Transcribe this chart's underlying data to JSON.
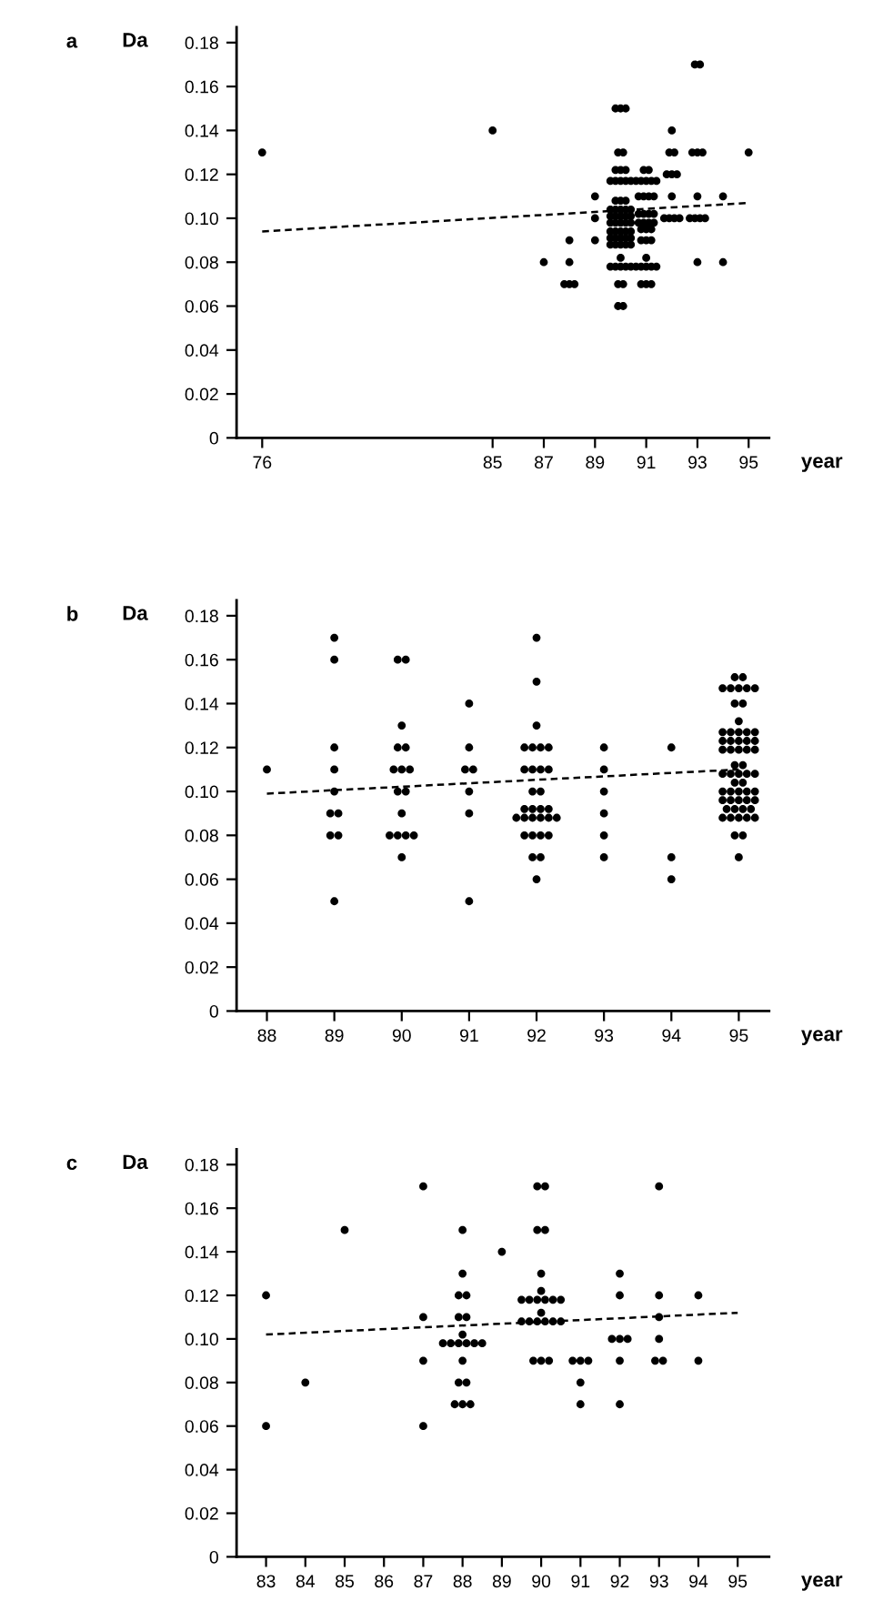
{
  "chart_data": [
    {
      "type": "scatter",
      "title": "a",
      "ylabel": "Da",
      "xlabel": "year",
      "xlim": [
        75,
        95.8
      ],
      "xticks": [
        76,
        85,
        87,
        89,
        91,
        93,
        95
      ],
      "ylim": [
        0,
        0.187
      ],
      "yticks": [
        0,
        {
          "value": 0.02,
          "label": "0.02"
        },
        {
          "value": 0.04,
          "label": "0.04"
        },
        {
          "value": 0.06,
          "label": "0.06"
        },
        {
          "value": 0.08,
          "label": "0.08"
        },
        {
          "value": 0.1,
          "label": "0.10"
        },
        {
          "value": 0.12,
          "label": "0.12"
        },
        {
          "value": 0.14,
          "label": "0.14"
        },
        {
          "value": 0.16,
          "label": "0.16"
        },
        {
          "value": 0.18,
          "label": "0.18"
        }
      ],
      "series": [
        {
          "type": "scatter",
          "color": "#000000",
          "marker": "circle",
          "x": [
            76,
            85,
            87,
            88,
            88,
            87.8,
            88,
            88.2,
            89,
            89,
            89,
            89.8,
            90,
            90.2,
            89.9,
            90.1,
            89.8,
            90,
            90.2,
            89.6,
            89.8,
            90,
            90.2,
            90.4,
            89.8,
            90,
            90.2,
            89.6,
            89.8,
            90,
            90.2,
            90.4,
            89.6,
            89.8,
            90,
            90.2,
            90.4,
            89.6,
            89.8,
            90,
            90.2,
            90.4,
            89.6,
            89.8,
            90,
            90.2,
            90.4,
            89.6,
            89.8,
            90,
            90.2,
            90.4,
            89.6,
            89.8,
            90,
            90.2,
            90.4,
            90,
            89.6,
            89.8,
            90,
            90.2,
            90.4,
            89.9,
            90.1,
            89.9,
            90.1,
            90.9,
            91.1,
            90.6,
            90.8,
            91,
            91.2,
            91.4,
            90.7,
            90.9,
            91.1,
            91.3,
            90.7,
            90.9,
            91.1,
            91.3,
            90.7,
            90.9,
            91.1,
            91.3,
            90.8,
            91,
            91.2,
            90.8,
            91,
            91.2,
            91,
            90.6,
            90.8,
            91,
            91.2,
            91.4,
            90.8,
            91,
            91.2,
            92,
            91.9,
            92.1,
            91.8,
            92,
            92.2,
            92,
            91.7,
            91.9,
            92.1,
            92.3,
            92.9,
            93.1,
            92.8,
            93,
            93.2,
            93,
            92.7,
            92.9,
            93.1,
            93.3,
            93,
            94,
            94,
            95
          ],
          "values": [
            0.13,
            0.14,
            0.08,
            0.09,
            0.08,
            0.07,
            0.07,
            0.07,
            0.11,
            0.1,
            0.09,
            0.15,
            0.15,
            0.15,
            0.13,
            0.13,
            0.122,
            0.122,
            0.122,
            0.117,
            0.117,
            0.117,
            0.117,
            0.117,
            0.108,
            0.108,
            0.108,
            0.104,
            0.104,
            0.104,
            0.104,
            0.104,
            0.101,
            0.101,
            0.101,
            0.101,
            0.101,
            0.098,
            0.098,
            0.098,
            0.098,
            0.098,
            0.094,
            0.094,
            0.094,
            0.094,
            0.094,
            0.091,
            0.091,
            0.091,
            0.091,
            0.091,
            0.088,
            0.088,
            0.088,
            0.088,
            0.088,
            0.082,
            0.078,
            0.078,
            0.078,
            0.078,
            0.078,
            0.07,
            0.07,
            0.06,
            0.06,
            0.122,
            0.122,
            0.117,
            0.117,
            0.117,
            0.117,
            0.117,
            0.11,
            0.11,
            0.11,
            0.11,
            0.102,
            0.102,
            0.102,
            0.102,
            0.098,
            0.098,
            0.098,
            0.098,
            0.095,
            0.095,
            0.095,
            0.09,
            0.09,
            0.09,
            0.082,
            0.078,
            0.078,
            0.078,
            0.078,
            0.078,
            0.07,
            0.07,
            0.07,
            0.14,
            0.13,
            0.13,
            0.12,
            0.12,
            0.12,
            0.11,
            0.1,
            0.1,
            0.1,
            0.1,
            0.17,
            0.17,
            0.13,
            0.13,
            0.13,
            0.11,
            0.1,
            0.1,
            0.1,
            0.1,
            0.08,
            0.11,
            0.08,
            0.13
          ]
        },
        {
          "type": "line",
          "color": "#000000",
          "line_style": "dashed",
          "x": [
            76,
            95
          ],
          "values": [
            0.094,
            0.107
          ]
        }
      ]
    },
    {
      "type": "scatter",
      "title": "b",
      "ylabel": "Da",
      "xlabel": "year",
      "xlim": [
        87.55,
        95.45
      ],
      "xticks": [
        88,
        89,
        90,
        91,
        92,
        93,
        94,
        95
      ],
      "ylim": [
        0,
        0.187
      ],
      "yticks": [
        0,
        {
          "value": 0.02,
          "label": "0.02"
        },
        {
          "value": 0.04,
          "label": "0.04"
        },
        {
          "value": 0.06,
          "label": "0.06"
        },
        {
          "value": 0.08,
          "label": "0.08"
        },
        {
          "value": 0.1,
          "label": "0.10"
        },
        {
          "value": 0.12,
          "label": "0.12"
        },
        {
          "value": 0.14,
          "label": "0.14"
        },
        {
          "value": 0.16,
          "label": "0.16"
        },
        {
          "value": 0.18,
          "label": "0.18"
        }
      ],
      "series": [
        {
          "type": "scatter",
          "color": "#000000",
          "marker": "circle",
          "x": [
            88,
            89,
            89,
            89,
            89,
            89,
            88.94,
            89.06,
            88.94,
            89.06,
            89,
            89.94,
            90.06,
            90,
            89.94,
            90.06,
            89.88,
            90,
            90.12,
            89.94,
            90.06,
            90,
            89.82,
            89.94,
            90.06,
            90.18,
            90,
            91,
            91,
            90.94,
            91.06,
            91,
            91,
            91,
            92,
            92,
            92,
            91.82,
            91.94,
            92.06,
            92.18,
            91.82,
            91.94,
            92.06,
            92.18,
            91.94,
            92.06,
            91.82,
            91.94,
            92.06,
            92.18,
            91.7,
            91.82,
            91.94,
            92.06,
            92.18,
            92.3,
            91.82,
            91.94,
            92.06,
            92.18,
            91.94,
            92.06,
            92,
            93,
            93,
            93,
            93,
            93,
            93,
            94,
            94,
            94,
            94.94,
            95.06,
            94.76,
            94.88,
            95,
            95.12,
            95.24,
            94.94,
            95.06,
            95,
            94.76,
            94.88,
            95,
            95.12,
            95.24,
            94.76,
            94.88,
            95,
            95.12,
            95.24,
            94.76,
            94.88,
            95,
            95.12,
            95.24,
            94.94,
            95.06,
            94.76,
            94.88,
            95,
            95.12,
            95.24,
            94.94,
            95.06,
            94.76,
            94.88,
            95,
            95.12,
            95.24,
            94.76,
            94.88,
            95,
            95.12,
            95.24,
            94.82,
            94.94,
            95.06,
            95.18,
            94.76,
            94.88,
            95,
            95.12,
            95.24,
            94.94,
            95.06,
            95
          ],
          "values": [
            0.11,
            0.17,
            0.16,
            0.12,
            0.11,
            0.1,
            0.09,
            0.09,
            0.08,
            0.08,
            0.05,
            0.16,
            0.16,
            0.13,
            0.12,
            0.12,
            0.11,
            0.11,
            0.11,
            0.1,
            0.1,
            0.09,
            0.08,
            0.08,
            0.08,
            0.08,
            0.07,
            0.14,
            0.12,
            0.11,
            0.11,
            0.1,
            0.09,
            0.05,
            0.17,
            0.15,
            0.13,
            0.12,
            0.12,
            0.12,
            0.12,
            0.11,
            0.11,
            0.11,
            0.11,
            0.1,
            0.1,
            0.092,
            0.092,
            0.092,
            0.092,
            0.088,
            0.088,
            0.088,
            0.088,
            0.088,
            0.088,
            0.08,
            0.08,
            0.08,
            0.08,
            0.07,
            0.07,
            0.06,
            0.12,
            0.11,
            0.1,
            0.09,
            0.08,
            0.07,
            0.12,
            0.07,
            0.06,
            0.152,
            0.152,
            0.147,
            0.147,
            0.147,
            0.147,
            0.147,
            0.14,
            0.14,
            0.132,
            0.127,
            0.127,
            0.127,
            0.127,
            0.127,
            0.123,
            0.123,
            0.123,
            0.123,
            0.123,
            0.119,
            0.119,
            0.119,
            0.119,
            0.119,
            0.112,
            0.112,
            0.108,
            0.108,
            0.108,
            0.108,
            0.108,
            0.104,
            0.104,
            0.1,
            0.1,
            0.1,
            0.1,
            0.1,
            0.096,
            0.096,
            0.096,
            0.096,
            0.096,
            0.092,
            0.092,
            0.092,
            0.092,
            0.088,
            0.088,
            0.088,
            0.088,
            0.088,
            0.08,
            0.08,
            0.07
          ]
        },
        {
          "type": "line",
          "color": "#000000",
          "line_style": "dashed",
          "x": [
            88,
            95
          ],
          "values": [
            0.099,
            0.11
          ]
        }
      ]
    },
    {
      "type": "scatter",
      "title": "c",
      "ylabel": "Da",
      "xlabel": "year",
      "xlim": [
        82.25,
        95.8
      ],
      "xticks": [
        83,
        84,
        85,
        86,
        87,
        88,
        89,
        90,
        91,
        92,
        93,
        94,
        95
      ],
      "ylim": [
        0,
        0.187
      ],
      "yticks": [
        0,
        {
          "value": 0.02,
          "label": "0.02"
        },
        {
          "value": 0.04,
          "label": "0.04"
        },
        {
          "value": 0.06,
          "label": "0.06"
        },
        {
          "value": 0.08,
          "label": "0.08"
        },
        {
          "value": 0.1,
          "label": "0.10"
        },
        {
          "value": 0.12,
          "label": "0.12"
        },
        {
          "value": 0.14,
          "label": "0.14"
        },
        {
          "value": 0.16,
          "label": "0.16"
        },
        {
          "value": 0.18,
          "label": "0.18"
        }
      ],
      "series": [
        {
          "type": "scatter",
          "color": "#000000",
          "marker": "circle",
          "x": [
            83,
            83,
            84,
            85,
            87,
            87,
            87,
            87,
            88,
            88,
            87.9,
            88.1,
            87.9,
            88.1,
            88,
            87.5,
            87.7,
            87.9,
            88.1,
            88.3,
            88.5,
            88,
            87.9,
            88.1,
            87.8,
            88,
            88.2,
            89,
            89.9,
            90.1,
            89.9,
            90.1,
            90,
            90,
            89.5,
            89.7,
            89.9,
            90.1,
            90.3,
            90.5,
            90,
            89.5,
            89.7,
            89.9,
            90.1,
            90.3,
            90.5,
            89.8,
            90,
            90.2,
            90.8,
            91,
            91.2,
            91,
            91,
            92,
            92,
            91.8,
            92,
            92.2,
            92,
            92,
            93,
            93,
            93,
            93,
            92.9,
            93.1,
            94,
            94
          ],
          "values": [
            0.12,
            0.06,
            0.08,
            0.15,
            0.17,
            0.11,
            0.09,
            0.06,
            0.15,
            0.13,
            0.12,
            0.12,
            0.11,
            0.11,
            0.102,
            0.098,
            0.098,
            0.098,
            0.098,
            0.098,
            0.098,
            0.09,
            0.08,
            0.08,
            0.07,
            0.07,
            0.07,
            0.14,
            0.17,
            0.17,
            0.15,
            0.15,
            0.13,
            0.122,
            0.118,
            0.118,
            0.118,
            0.118,
            0.118,
            0.118,
            0.112,
            0.108,
            0.108,
            0.108,
            0.108,
            0.108,
            0.108,
            0.09,
            0.09,
            0.09,
            0.09,
            0.09,
            0.09,
            0.08,
            0.07,
            0.13,
            0.12,
            0.1,
            0.1,
            0.1,
            0.09,
            0.07,
            0.17,
            0.12,
            0.11,
            0.1,
            0.09,
            0.09,
            0.12,
            0.09
          ]
        },
        {
          "type": "line",
          "color": "#000000",
          "line_style": "dashed",
          "x": [
            83,
            95
          ],
          "values": [
            0.102,
            0.112
          ]
        }
      ]
    }
  ]
}
